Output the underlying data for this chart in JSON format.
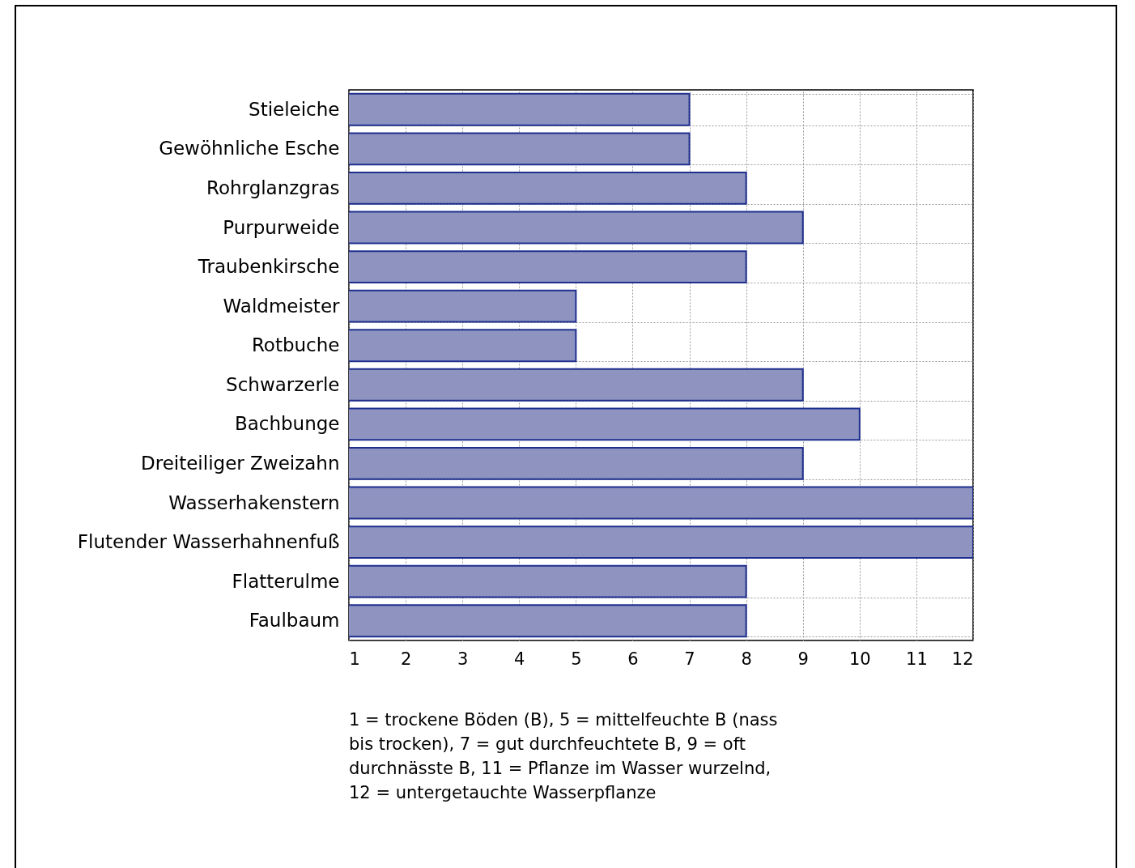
{
  "chart_data": {
    "type": "bar",
    "orientation": "horizontal",
    "categories": [
      "Stieleiche",
      "Gewöhnliche Esche",
      "Rohrglanzgras",
      "Purpurweide",
      "Traubenkirsche",
      "Waldmeister",
      "Rotbuche",
      "Schwarzerle",
      "Bachbunge",
      "Dreiteiliger Zweizahn",
      "Wasserhakenstern",
      "Flutender Wasserhahnenfuß",
      "Flatterulme",
      "Faulbaum"
    ],
    "values": [
      7,
      7,
      8,
      9,
      8,
      5,
      5,
      9,
      10,
      9,
      12,
      12,
      8,
      8
    ],
    "color": "#8e94bf",
    "xlim": [
      1,
      12
    ],
    "xticks": [
      1,
      2,
      3,
      4,
      5,
      6,
      7,
      8,
      9,
      10,
      11,
      12
    ],
    "grid": true,
    "annotations": [
      "1 = trockene Böden (B), 5 = mittelfeuchte B (nass bis trocken), 7 = gut durchfeuchtete B, 9 = oft durchnässte B,  11 = Pflanze im Wasser wurzelnd, 12 = untergetauchte Wasserpflanze"
    ]
  }
}
